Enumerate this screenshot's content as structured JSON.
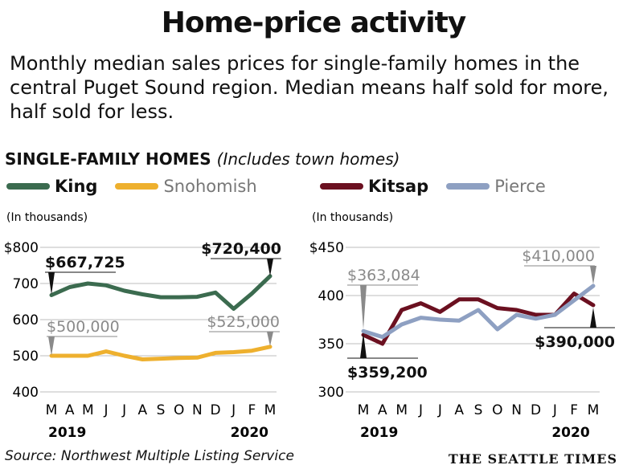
{
  "title": "Home-price activity",
  "subtitle": "Monthly median sales prices for single-family homes in the central Puget Sound region. Median means half sold for more, half sold for less.",
  "section_title": "SINGLE-FAMILY HOMES",
  "section_note": "(Includes town homes)",
  "source": "Source: Northwest Multiple Listing Service",
  "brand": "THE SEATTLE TIMES",
  "colors": {
    "king": "#3b6b4f",
    "snohomish": "#eeb02e",
    "kitsap": "#6b1020",
    "pierce": "#8ea0c2"
  },
  "chart_data": [
    {
      "type": "line",
      "units": "(In thousands)",
      "categories": [
        "M",
        "A",
        "M",
        "J",
        "J",
        "A",
        "S",
        "O",
        "N",
        "D",
        "J",
        "F",
        "M"
      ],
      "year_labels": [
        "2019",
        "2020"
      ],
      "ylim": [
        400,
        800
      ],
      "yticks": [
        "$800",
        "700",
        "600",
        "500",
        "400"
      ],
      "series": [
        {
          "name": "King",
          "color": "#3b6b4f",
          "values": [
            667.7,
            690,
            700,
            695,
            680,
            670,
            662,
            662,
            663,
            675,
            630,
            672,
            720.4
          ]
        },
        {
          "name": "Snohomish",
          "color": "#eeb02e",
          "values": [
            500,
            500,
            500,
            512,
            500,
            490,
            492,
            494,
            495,
            508,
            510,
            514,
            525
          ]
        }
      ],
      "annotations": [
        {
          "text": "$667,725",
          "style": "bold"
        },
        {
          "text": "$720,400",
          "style": "bold"
        },
        {
          "text": "$500,000",
          "style": "light"
        },
        {
          "text": "$525,000",
          "style": "light"
        }
      ]
    },
    {
      "type": "line",
      "units": "(In thousands)",
      "categories": [
        "M",
        "A",
        "M",
        "J",
        "J",
        "A",
        "S",
        "O",
        "N",
        "D",
        "J",
        "F",
        "M"
      ],
      "year_labels": [
        "2019",
        "2020"
      ],
      "ylim": [
        300,
        450
      ],
      "yticks": [
        "$450",
        "400",
        "350",
        "300"
      ],
      "series": [
        {
          "name": "Kitsap",
          "color": "#6b1020",
          "values": [
            359.2,
            350,
            385,
            392,
            383,
            396,
            396,
            387,
            385,
            380,
            380,
            402,
            390
          ]
        },
        {
          "name": "Pierce",
          "color": "#8ea0c2",
          "values": [
            363.1,
            357,
            370,
            377,
            375,
            374,
            385,
            365,
            380,
            376,
            380,
            395,
            410
          ]
        }
      ],
      "annotations": [
        {
          "text": "$363,084",
          "style": "light"
        },
        {
          "text": "$359,200",
          "style": "bold"
        },
        {
          "text": "$410,000",
          "style": "light"
        },
        {
          "text": "$390,000",
          "style": "bold"
        }
      ]
    }
  ]
}
